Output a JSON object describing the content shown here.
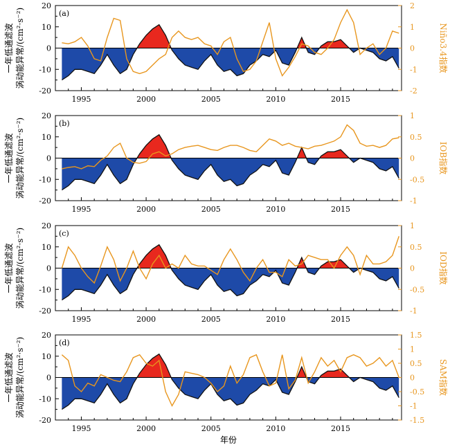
{
  "figure": {
    "xlabel": "年份",
    "left_ylabel_line1": "一年低通滤波",
    "left_ylabel_line2": "涡动能异常/(cm²·s⁻²)",
    "left_ylabel_line2_d": "涡动能异常/(cm²·s⁻²)"
  },
  "colors": {
    "positive": "#e8281e",
    "negative": "#1e4aa8",
    "index_line": "#e8961e",
    "eke_line": "#111111",
    "axis": "#000000"
  },
  "chart_data": [
    {
      "type": "area",
      "panel": "(a)",
      "index_name": "Niño3.4指数",
      "xlim": [
        1993,
        2019.7
      ],
      "ylim_left": [
        -20,
        20
      ],
      "ylim_right": [
        -2,
        2
      ],
      "xticks": [
        1995,
        2000,
        2005,
        2010,
        2015
      ],
      "yticks_left": [
        -20,
        -10,
        0,
        10,
        20
      ],
      "yticks_right": [
        -2,
        -1,
        0,
        1,
        2
      ],
      "index_x": [
        1993.5,
        1994,
        1994.5,
        1995,
        1995.5,
        1996,
        1996.5,
        1997,
        1997.5,
        1998,
        1998.5,
        1999,
        1999.5,
        2000,
        2000.5,
        2001,
        2001.5,
        2002,
        2002.5,
        2003,
        2003.5,
        2004,
        2004.5,
        2005,
        2005.5,
        2006,
        2006.5,
        2007,
        2007.5,
        2008,
        2008.5,
        2009,
        2009.5,
        2010,
        2010.5,
        2011,
        2011.5,
        2012,
        2012.5,
        2013,
        2013.5,
        2014,
        2014.5,
        2015,
        2015.5,
        2016,
        2016.5,
        2017,
        2017.5,
        2018,
        2018.5,
        2019,
        2019.5
      ],
      "index_y": [
        0.25,
        0.2,
        0.3,
        0.5,
        0.1,
        -0.5,
        -0.6,
        0.5,
        1.4,
        1.3,
        -0.5,
        -1.1,
        -1.2,
        -1.1,
        -0.8,
        -0.5,
        -0.3,
        0.5,
        0.8,
        0.5,
        0.4,
        0.5,
        0.2,
        0.1,
        -0.3,
        0.3,
        0.5,
        -0.5,
        -1.1,
        -1.0,
        -0.6,
        0.3,
        1.2,
        -0.5,
        -1.3,
        -0.9,
        -0.4,
        0.2,
        0.1,
        -0.2,
        -0.3,
        0.0,
        0.4,
        1.2,
        1.8,
        1.2,
        -0.3,
        0.0,
        0.2,
        -0.3,
        0.0,
        0.8,
        0.7
      ]
    },
    {
      "type": "area",
      "panel": "(b)",
      "index_name": "IOB指数",
      "xlim": [
        1993,
        2019.7
      ],
      "ylim_left": [
        -20,
        20
      ],
      "ylim_right": [
        -1.0,
        1.0
      ],
      "xticks": [
        1995,
        2000,
        2005,
        2010,
        2015
      ],
      "yticks_left": [
        -20,
        -10,
        0,
        10,
        20
      ],
      "yticks_right": [
        -1.0,
        -0.5,
        0,
        0.5,
        1.0
      ],
      "index_x": [
        1993.5,
        1994,
        1994.5,
        1995,
        1995.5,
        1996,
        1996.5,
        1997,
        1997.5,
        1998,
        1998.5,
        1999,
        1999.5,
        2000,
        2000.5,
        2001,
        2001.5,
        2002,
        2002.5,
        2003,
        2003.5,
        2004,
        2004.5,
        2005,
        2005.5,
        2006,
        2006.5,
        2007,
        2007.5,
        2008,
        2008.5,
        2009,
        2009.5,
        2010,
        2010.5,
        2011,
        2011.5,
        2012,
        2012.5,
        2013,
        2013.5,
        2014,
        2014.5,
        2015,
        2015.5,
        2016,
        2016.5,
        2017,
        2017.5,
        2018,
        2018.5,
        2019,
        2019.5
      ],
      "index_y": [
        -0.25,
        -0.22,
        -0.2,
        -0.25,
        -0.18,
        -0.2,
        -0.05,
        0.05,
        0.25,
        0.35,
        0.0,
        -0.1,
        -0.12,
        -0.08,
        0.1,
        0.15,
        0.05,
        0.1,
        0.2,
        0.25,
        0.28,
        0.3,
        0.25,
        0.2,
        0.18,
        0.25,
        0.3,
        0.3,
        0.25,
        0.18,
        0.15,
        0.3,
        0.45,
        0.4,
        0.3,
        0.35,
        0.28,
        0.25,
        0.22,
        0.28,
        0.3,
        0.35,
        0.4,
        0.5,
        0.78,
        0.65,
        0.35,
        0.28,
        0.3,
        0.25,
        0.3,
        0.45,
        0.48
      ]
    },
    {
      "type": "area",
      "panel": "(c)",
      "index_name": "IOD指数",
      "xlim": [
        1993,
        2019.7
      ],
      "ylim_left": [
        -20,
        20
      ],
      "ylim_right": [
        -1.0,
        1.0
      ],
      "xticks": [
        1995,
        2000,
        2005,
        2010,
        2015
      ],
      "yticks_left": [
        -20,
        -10,
        0,
        10,
        20
      ],
      "yticks_right": [
        -1.0,
        -0.5,
        0,
        0.5,
        1.0
      ],
      "index_x": [
        1993.5,
        1994,
        1994.5,
        1995,
        1995.5,
        1996,
        1996.5,
        1997,
        1997.5,
        1998,
        1998.5,
        1999,
        1999.5,
        2000,
        2000.5,
        2001,
        2001.5,
        2002,
        2002.5,
        2003,
        2003.5,
        2004,
        2004.5,
        2005,
        2005.5,
        2006,
        2006.5,
        2007,
        2007.5,
        2008,
        2008.5,
        2009,
        2009.5,
        2010,
        2010.5,
        2011,
        2011.5,
        2012,
        2012.5,
        2013,
        2013.5,
        2014,
        2014.5,
        2015,
        2015.5,
        2016,
        2016.5,
        2017,
        2017.5,
        2018,
        2018.5,
        2019,
        2019.5
      ],
      "index_y": [
        0.0,
        0.5,
        0.3,
        0.0,
        -0.2,
        -0.35,
        0.05,
        0.5,
        0.2,
        -0.3,
        0.0,
        0.4,
        0.0,
        -0.25,
        0.1,
        0.3,
        0.0,
        0.1,
        0.0,
        0.3,
        0.1,
        0.05,
        0.05,
        -0.05,
        -0.15,
        0.2,
        0.45,
        0.2,
        -0.1,
        -0.3,
        0.0,
        0.2,
        -0.1,
        -0.1,
        -0.2,
        0.2,
        0.05,
        0.1,
        0.3,
        0.25,
        0.2,
        0.2,
        0.0,
        0.3,
        0.5,
        0.3,
        -0.15,
        0.3,
        0.1,
        0.1,
        0.15,
        0.3,
        0.75
      ]
    },
    {
      "type": "area",
      "panel": "(d)",
      "index_name": "SAM指数",
      "xlim": [
        1993,
        2019.7
      ],
      "ylim_left": [
        -20,
        20
      ],
      "ylim_right": [
        -1.5,
        1.5
      ],
      "xticks": [
        1995,
        2000,
        2005,
        2010,
        2015
      ],
      "yticks_left": [
        -20,
        -10,
        0,
        10,
        20
      ],
      "yticks_right": [
        -1.5,
        -1.0,
        -0.5,
        0,
        0.5,
        1.0,
        1.5
      ],
      "index_x": [
        1993.5,
        1994,
        1994.5,
        1995,
        1995.5,
        1996,
        1996.5,
        1997,
        1997.5,
        1998,
        1998.5,
        1999,
        1999.5,
        2000,
        2000.5,
        2001,
        2001.5,
        2002,
        2002.5,
        2003,
        2003.5,
        2004,
        2004.5,
        2005,
        2005.5,
        2006,
        2006.5,
        2007,
        2007.5,
        2008,
        2008.5,
        2009,
        2009.5,
        2010,
        2010.5,
        2011,
        2011.5,
        2012,
        2012.5,
        2013,
        2013.5,
        2014,
        2014.5,
        2015,
        2015.5,
        2016,
        2016.5,
        2017,
        2017.5,
        2018,
        2018.5,
        2019,
        2019.5
      ],
      "index_y": [
        0.8,
        0.6,
        -0.3,
        -0.5,
        -0.2,
        -0.3,
        0.1,
        0.0,
        -0.1,
        -0.15,
        0.2,
        0.7,
        0.8,
        0.5,
        0.4,
        0.6,
        -0.5,
        -1.0,
        -0.6,
        0.2,
        0.15,
        0.1,
        0.0,
        -0.2,
        -0.5,
        -0.3,
        0.4,
        -0.2,
        0.1,
        0.7,
        0.8,
        0.2,
        -0.3,
        -0.2,
        0.8,
        -0.4,
        -0.1,
        0.7,
        -0.2,
        0.2,
        0.7,
        0.4,
        0.6,
        0.2,
        0.7,
        0.8,
        0.7,
        0.4,
        0.5,
        0.7,
        0.4,
        0.6,
        0.0
      ]
    }
  ],
  "eke": {
    "name": "一年低通滤波涡动能异常",
    "x": [
      1993.5,
      1994,
      1994.5,
      1995,
      1995.5,
      1996,
      1996.5,
      1997,
      1997.5,
      1998,
      1998.5,
      1999,
      1999.5,
      2000,
      2000.5,
      2001,
      2001.5,
      2002,
      2002.5,
      2003,
      2003.5,
      2004,
      2004.5,
      2005,
      2005.5,
      2006,
      2006.5,
      2007,
      2007.5,
      2008,
      2008.5,
      2009,
      2009.5,
      2010,
      2010.5,
      2011,
      2011.5,
      2012,
      2012.5,
      2013,
      2013.5,
      2014,
      2014.5,
      2015,
      2015.5,
      2016,
      2016.5,
      2017,
      2017.5,
      2018,
      2018.5,
      2019,
      2019.5
    ],
    "y": [
      -15,
      -13,
      -10,
      -10,
      -11,
      -12,
      -8,
      -3,
      -8,
      -12,
      -10,
      -3,
      2,
      6,
      9,
      11,
      6,
      -1,
      -5,
      -8,
      -9,
      -10,
      -6,
      -3,
      -8,
      -11,
      -10,
      -13,
      -12,
      -8,
      -6,
      -3,
      -4,
      -1,
      -7,
      -8,
      -2,
      5,
      -2,
      -3,
      1,
      3,
      3,
      4,
      1,
      -2,
      0,
      -1,
      -2,
      -5,
      -6,
      -4,
      -9.5
    ]
  }
}
